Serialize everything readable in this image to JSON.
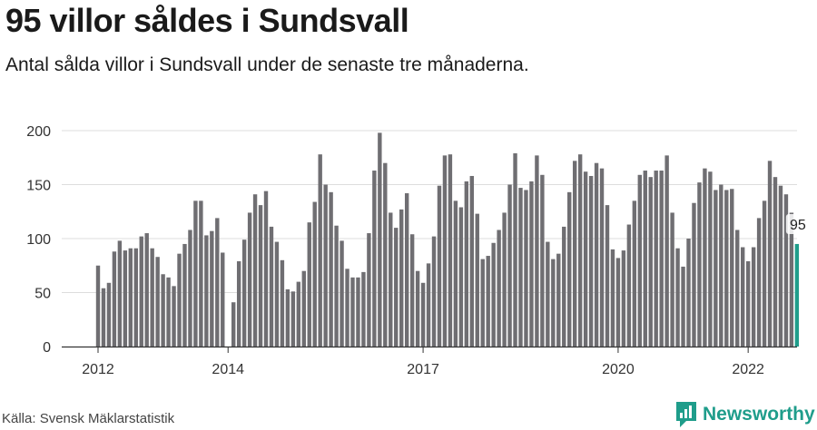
{
  "header": {
    "title": "95 villor såldes i Sundsvall",
    "subtitle": "Antal sålda villor i Sundsvall under de senaste tre månaderna."
  },
  "footer": {
    "source": "Källa: Svensk Mäklarstatistik",
    "brand": "Newsworthy"
  },
  "colors": {
    "bar": "#6f6e72",
    "highlight": "#1f9d8b",
    "grid": "#dddddd",
    "axis": "#333333"
  },
  "chart_data": {
    "type": "bar",
    "title": "95 villor såldes i Sundsvall",
    "subtitle": "Antal sålda villor i Sundsvall under de senaste tre månaderna.",
    "xlabel": "",
    "ylabel": "",
    "ylim": [
      0,
      200
    ],
    "yticks": [
      0,
      50,
      100,
      150,
      200
    ],
    "grid": true,
    "legend": "none",
    "x_ticks": [
      {
        "label": "2012",
        "index": 0
      },
      {
        "label": "2014",
        "index": 24
      },
      {
        "label": "2017",
        "index": 60
      },
      {
        "label": "2020",
        "index": 96
      },
      {
        "label": "2022",
        "index": 120
      }
    ],
    "values": [
      75,
      54,
      59,
      88,
      98,
      89,
      91,
      91,
      102,
      105,
      91,
      83,
      67,
      64,
      56,
      86,
      95,
      108,
      135,
      135,
      103,
      107,
      119,
      87,
      0,
      41,
      79,
      99,
      124,
      141,
      131,
      144,
      111,
      97,
      80,
      53,
      51,
      60,
      70,
      115,
      134,
      178,
      150,
      143,
      112,
      98,
      72,
      64,
      64,
      69,
      105,
      163,
      198,
      170,
      124,
      110,
      127,
      142,
      104,
      70,
      59,
      77,
      102,
      149,
      177,
      178,
      135,
      129,
      153,
      158,
      123,
      81,
      84,
      96,
      108,
      124,
      150,
      179,
      147,
      145,
      153,
      177,
      159,
      97,
      81,
      86,
      111,
      143,
      172,
      178,
      162,
      158,
      170,
      165,
      131,
      90,
      82,
      89,
      113,
      135,
      159,
      163,
      157,
      163,
      163,
      177,
      124,
      91,
      74,
      100,
      133,
      152,
      165,
      162,
      145,
      150,
      145,
      146,
      108,
      92,
      79,
      92,
      119,
      135,
      172,
      157,
      149,
      141,
      124,
      95
    ],
    "highlight_last": true,
    "annotation": "95"
  }
}
